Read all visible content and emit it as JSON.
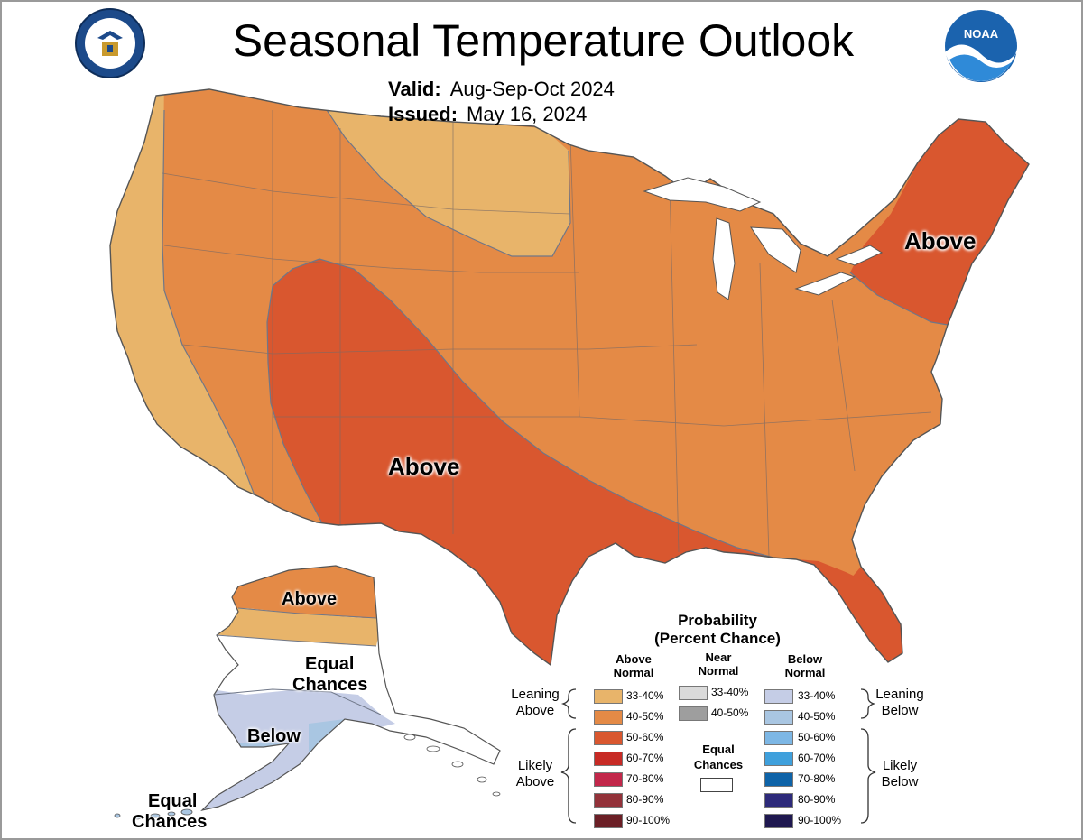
{
  "title": "Seasonal Temperature Outlook",
  "valid_label": "Valid:",
  "valid_value": "Aug-Sep-Oct 2024",
  "issued_label": "Issued:",
  "issued_value": "May 16, 2024",
  "logos": {
    "left": "commerce-seal-icon",
    "right": "noaa-logo-icon"
  },
  "regions": [
    {
      "id": "southwest",
      "category": "likely-above",
      "probability": "50-60%"
    },
    {
      "id": "northeast",
      "category": "likely-above",
      "probability": "50-60%"
    },
    {
      "id": "gulf-coast-florida",
      "category": "likely-above",
      "probability": "50-60%"
    },
    {
      "id": "central-east",
      "category": "leaning-above",
      "probability": "40-50%"
    },
    {
      "id": "northern-plains",
      "category": "leaning-above",
      "probability": "33-40%"
    },
    {
      "id": "west-coast",
      "category": "leaning-above",
      "probability": "33-40%"
    },
    {
      "id": "alaska-north",
      "category": "leaning-above",
      "probability": "40-50%"
    },
    {
      "id": "alaska-south",
      "category": "leaning-below",
      "probability": "33-40%"
    },
    {
      "id": "alaska-aleutians",
      "category": "leaning-below",
      "probability": "40-50%"
    }
  ],
  "map_labels": {
    "sw_above": "Above",
    "ne_above": "Above",
    "ak_above": "Above",
    "ak_equal_1": "Equal",
    "ak_equal_2": "Chances",
    "ak_below": "Below",
    "ak_equal_3": "Equal",
    "ak_equal_4": "Chances"
  },
  "legend": {
    "title_1": "Probability",
    "title_2": "(Percent Chance)",
    "above_head_1": "Above",
    "above_head_2": "Normal",
    "near_head_1": "Near",
    "near_head_2": "Normal",
    "below_head_1": "Below",
    "below_head_2": "Normal",
    "leaning_above_1": "Leaning",
    "leaning_above_2": "Above",
    "likely_above_1": "Likely",
    "likely_above_2": "Above",
    "leaning_below_1": "Leaning",
    "leaning_below_2": "Below",
    "likely_below_1": "Likely",
    "likely_below_2": "Below",
    "equal_1": "Equal",
    "equal_2": "Chances",
    "above": [
      {
        "label": "33-40%",
        "color": "#E8B46A"
      },
      {
        "label": "40-50%",
        "color": "#E48A46"
      },
      {
        "label": "50-60%",
        "color": "#D9572F"
      },
      {
        "label": "60-70%",
        "color": "#C72A25"
      },
      {
        "label": "70-80%",
        "color": "#C2274A"
      },
      {
        "label": "80-90%",
        "color": "#93323A"
      },
      {
        "label": "90-100%",
        "color": "#6B1F26"
      }
    ],
    "near": [
      {
        "label": "33-40%",
        "color": "#DADADA"
      },
      {
        "label": "40-50%",
        "color": "#9E9E9E"
      }
    ],
    "below": [
      {
        "label": "33-40%",
        "color": "#C5CDE6"
      },
      {
        "label": "40-50%",
        "color": "#A9C6E2"
      },
      {
        "label": "50-60%",
        "color": "#7DB7E5"
      },
      {
        "label": "60-70%",
        "color": "#3FA0DC"
      },
      {
        "label": "70-80%",
        "color": "#0E63A8"
      },
      {
        "label": "80-90%",
        "color": "#2D2A7A"
      },
      {
        "label": "90-100%",
        "color": "#1F1850"
      }
    ]
  }
}
